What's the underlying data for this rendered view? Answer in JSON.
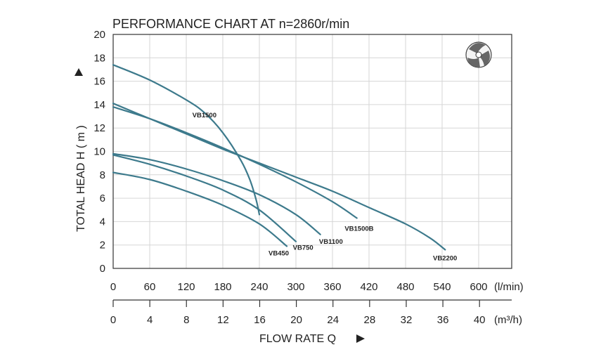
{
  "chart_data": {
    "type": "line",
    "title": "PERFORMANCE  CHART  AT  n=2860r/min",
    "ylabel": "TOTAL HEAD  H  ( m )",
    "xlabel": "FLOW  RATE  Q",
    "xlim": [
      0,
      655
    ],
    "ylim": [
      0,
      20
    ],
    "y_ticks": [
      "0",
      "2",
      "4",
      "6",
      "8",
      "10",
      "12",
      "14",
      "16",
      "18",
      "20"
    ],
    "x_ticks_lmin": [
      "0",
      "60",
      "120",
      "180",
      "240",
      "300",
      "360",
      "420",
      "480",
      "540",
      "600"
    ],
    "x_unit_lmin": "(l/min)",
    "x_ticks_m3h": [
      "0",
      "4",
      "8",
      "12",
      "16",
      "20",
      "24",
      "28",
      "32",
      "36",
      "40"
    ],
    "x_unit_m3h": "(m³/h)",
    "grid": true,
    "line_color": "#3d7a8c",
    "series": [
      {
        "name": "VB1500",
        "x": [
          0,
          60,
          120,
          150,
          180,
          210,
          225,
          235,
          240
        ],
        "y": [
          17.4,
          16.1,
          14.4,
          13.3,
          11.6,
          9.2,
          7.5,
          5.8,
          4.6
        ]
      },
      {
        "name": "VB2200",
        "x": [
          0,
          60,
          120,
          180,
          240,
          300,
          360,
          420,
          480,
          520,
          545
        ],
        "y": [
          14.1,
          12.8,
          11.5,
          10.2,
          9.0,
          7.8,
          6.6,
          5.2,
          3.8,
          2.6,
          1.6
        ]
      },
      {
        "name": "VB1500B",
        "x": [
          0,
          60,
          120,
          180,
          240,
          300,
          360,
          400
        ],
        "y": [
          13.8,
          12.8,
          11.6,
          10.3,
          8.9,
          7.4,
          5.7,
          4.3
        ]
      },
      {
        "name": "VB1100",
        "x": [
          0,
          60,
          120,
          180,
          240,
          300,
          340
        ],
        "y": [
          9.8,
          9.3,
          8.5,
          7.5,
          6.3,
          4.6,
          2.9
        ]
      },
      {
        "name": "VB750",
        "x": [
          0,
          60,
          120,
          180,
          240,
          300
        ],
        "y": [
          9.7,
          8.9,
          7.9,
          6.7,
          5.0,
          2.3
        ]
      },
      {
        "name": "VB450",
        "x": [
          0,
          60,
          120,
          180,
          240,
          285
        ],
        "y": [
          8.2,
          7.6,
          6.6,
          5.4,
          3.8,
          1.9
        ]
      }
    ],
    "labels": [
      {
        "text": "VB1500",
        "x": 130,
        "y": 12.9
      },
      {
        "text": "VB2200",
        "x": 525,
        "y": 0.7
      },
      {
        "text": "VB1500B",
        "x": 380,
        "y": 3.2
      },
      {
        "text": "VB1100",
        "x": 338,
        "y": 2.1
      },
      {
        "text": "VB750",
        "x": 295,
        "y": 1.6
      },
      {
        "text": "VB450",
        "x": 255,
        "y": 1.1
      }
    ]
  },
  "icons": {
    "impeller": "impeller-icon"
  }
}
